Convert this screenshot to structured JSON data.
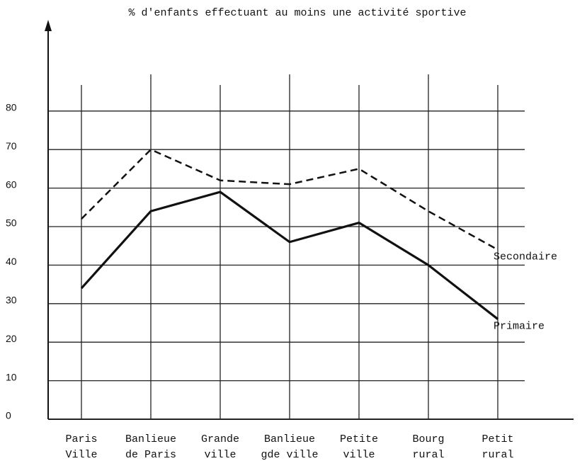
{
  "chart_data": {
    "type": "line",
    "title": "% d'enfants effectuant au moins une activité sportive",
    "categories": [
      "Paris\nVille",
      "Banlieue\nde Paris",
      "Grande\nville",
      "Banlieue\ngde ville",
      "Petite\nville",
      "Bourg\nrural",
      "Petit\nrural"
    ],
    "series": [
      {
        "name": "Secondaire",
        "color": "#111111",
        "dashed": true,
        "values": [
          52,
          70,
          62,
          61,
          65,
          54,
          44
        ]
      },
      {
        "name": "Primaire",
        "color": "#111111",
        "dashed": false,
        "values": [
          34,
          54,
          59,
          46,
          51,
          40,
          26
        ]
      }
    ],
    "ylim": [
      0,
      100
    ],
    "yticks": [
      0,
      10,
      20,
      30,
      40,
      50,
      60,
      70,
      80
    ],
    "grid": true,
    "legend": "end-labels"
  }
}
